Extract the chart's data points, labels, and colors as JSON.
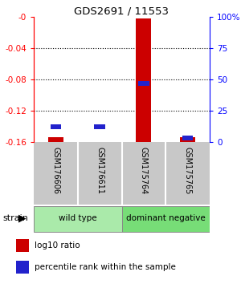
{
  "title": "GDS2691 / 11553",
  "categories": [
    "GSM176606",
    "GSM176611",
    "GSM175764",
    "GSM175765"
  ],
  "red_values": [
    -0.154,
    -0.16,
    -0.002,
    -0.154
  ],
  "blue_values_pct": [
    12,
    12,
    47,
    3
  ],
  "ylim_left": [
    -0.16,
    0
  ],
  "ylim_right": [
    0,
    100
  ],
  "yticks_left": [
    -0.16,
    -0.12,
    -0.08,
    -0.04,
    0
  ],
  "yticks_left_labels": [
    "-0.16",
    "-0.12",
    "-0.08",
    "-0.04",
    "-0"
  ],
  "yticks_right": [
    0,
    25,
    50,
    75,
    100
  ],
  "yticks_right_labels": [
    "0",
    "25",
    "50",
    "75",
    "100%"
  ],
  "group_labels": [
    "wild type",
    "dominant negative"
  ],
  "group_ranges": [
    [
      0,
      2
    ],
    [
      2,
      4
    ]
  ],
  "group_colors_light": [
    "#AAEAAA",
    "#77DD77"
  ],
  "bar_color_red": "#CC0000",
  "bar_color_blue": "#2222CC",
  "background_plot": "#FFFFFF",
  "background_xlabels": "#C8C8C8",
  "legend_items": [
    "log10 ratio",
    "percentile rank within the sample"
  ],
  "bar_width": 0.35
}
